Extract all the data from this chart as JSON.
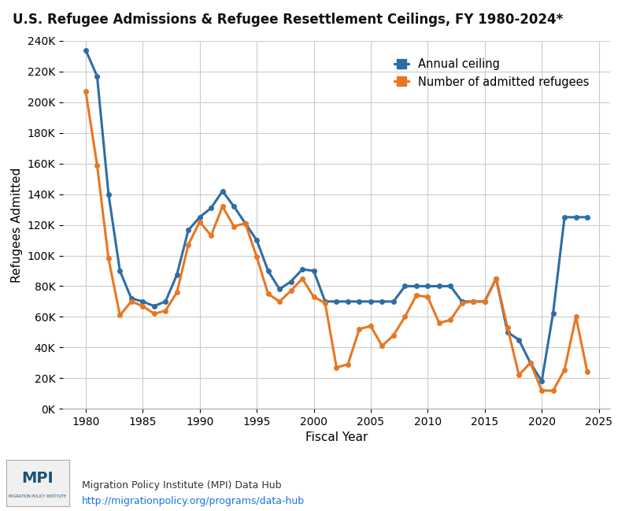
{
  "title": "U.S. Refugee Admissions & Refugee Resettlement Ceilings, FY 1980-2024*",
  "xlabel": "Fiscal Year",
  "ylabel": "Refugees Admitted",
  "ceiling": {
    "years": [
      1980,
      1981,
      1982,
      1983,
      1984,
      1985,
      1986,
      1987,
      1988,
      1989,
      1990,
      1991,
      1992,
      1993,
      1994,
      1995,
      1996,
      1997,
      1998,
      1999,
      2000,
      2001,
      2002,
      2003,
      2004,
      2005,
      2006,
      2007,
      2008,
      2009,
      2010,
      2011,
      2012,
      2013,
      2014,
      2015,
      2016,
      2017,
      2018,
      2019,
      2020,
      2021,
      2022,
      2023,
      2024
    ],
    "values": [
      234000,
      217000,
      140000,
      90000,
      72000,
      70000,
      67000,
      70000,
      87500,
      116500,
      125000,
      131000,
      142000,
      132000,
      121000,
      110000,
      90000,
      78000,
      83000,
      91000,
      90000,
      70000,
      70000,
      70000,
      70000,
      70000,
      70000,
      70000,
      80000,
      80000,
      80000,
      80000,
      80000,
      70000,
      70000,
      70000,
      85000,
      50000,
      45000,
      30000,
      18000,
      62500,
      125000,
      125000,
      125000
    ]
  },
  "admitted": {
    "years": [
      1980,
      1981,
      1982,
      1983,
      1984,
      1985,
      1986,
      1987,
      1988,
      1989,
      1990,
      1991,
      1992,
      1993,
      1994,
      1995,
      1996,
      1997,
      1998,
      1999,
      2000,
      2001,
      2002,
      2003,
      2004,
      2005,
      2006,
      2007,
      2008,
      2009,
      2010,
      2011,
      2012,
      2013,
      2014,
      2015,
      2016,
      2017,
      2018,
      2019,
      2020,
      2021,
      2022,
      2023,
      2024
    ],
    "values": [
      207000,
      159000,
      98000,
      61000,
      70000,
      67000,
      62000,
      64000,
      76000,
      107000,
      122000,
      113000,
      132000,
      119000,
      121000,
      99000,
      75000,
      70000,
      77000,
      85000,
      73000,
      69000,
      27000,
      29000,
      52000,
      54000,
      41000,
      48000,
      60000,
      74000,
      73000,
      56000,
      58000,
      69000,
      70000,
      70000,
      85000,
      53000,
      22000,
      30000,
      12000,
      11800,
      25500,
      60000,
      24000
    ],
    "color": "#e87722"
  },
  "ceiling_color": "#2e6da4",
  "admitted_color": "#e87722",
  "ylim": [
    0,
    240000
  ],
  "ytick_step": 20000,
  "background_color": "#ffffff",
  "grid_color": "#cccccc",
  "footer_text": "Migration Policy Institute (MPI) Data Hub",
  "footer_url": "http://migrationpolicy.org/programs/data-hub"
}
